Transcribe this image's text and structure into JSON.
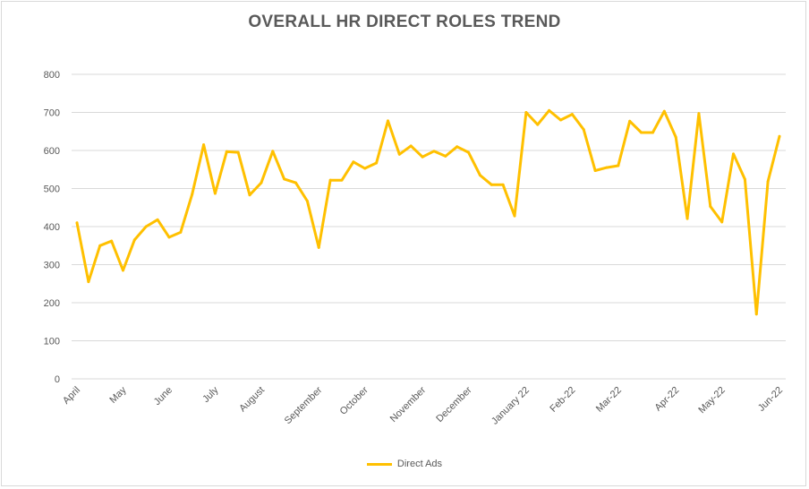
{
  "chart_data": {
    "type": "line",
    "title": "OVERALL HR DIRECT ROLES TREND",
    "xlabel": "",
    "ylabel": "",
    "ylim": [
      0,
      800
    ],
    "yticks": [
      0,
      100,
      200,
      300,
      400,
      500,
      600,
      700,
      800
    ],
    "grid": true,
    "legend_position": "bottom",
    "color": "#FFC000",
    "x_tick_labels": [
      {
        "label": "April",
        "index": 0
      },
      {
        "label": "May",
        "index": 4
      },
      {
        "label": "June",
        "index": 8
      },
      {
        "label": "July",
        "index": 12
      },
      {
        "label": "August",
        "index": 16
      },
      {
        "label": "September",
        "index": 21
      },
      {
        "label": "October",
        "index": 25
      },
      {
        "label": "November",
        "index": 30
      },
      {
        "label": "December",
        "index": 34
      },
      {
        "label": "January 22",
        "index": 39
      },
      {
        "label": "Feb-22",
        "index": 43
      },
      {
        "label": "Mar-22",
        "index": 47
      },
      {
        "label": "Apr-22",
        "index": 52
      },
      {
        "label": "May-22",
        "index": 56
      },
      {
        "label": "Jun-22",
        "index": 61
      }
    ],
    "series": [
      {
        "name": "Direct Ads",
        "values": [
          410,
          255,
          350,
          362,
          285,
          365,
          400,
          418,
          372,
          385,
          485,
          615,
          487,
          597,
          595,
          483,
          515,
          598,
          525,
          515,
          467,
          345,
          522,
          522,
          570,
          553,
          567,
          678,
          590,
          612,
          583,
          598,
          585,
          610,
          595,
          535,
          510,
          510,
          428,
          700,
          668,
          705,
          680,
          695,
          655,
          547,
          555,
          560,
          677,
          647,
          647,
          703,
          635,
          421,
          697,
          453,
          412,
          591,
          524,
          170,
          518,
          637
        ]
      }
    ]
  }
}
